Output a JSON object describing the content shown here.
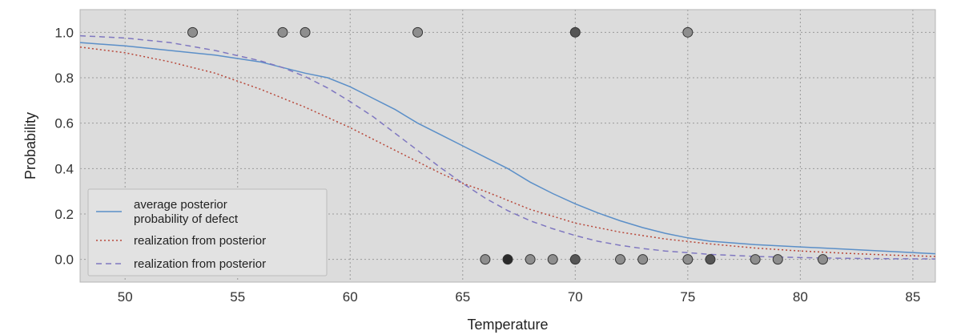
{
  "chart_data": {
    "type": "line",
    "title": "",
    "xlabel": "Temperature",
    "ylabel": "Probability",
    "xlim": [
      48,
      86
    ],
    "ylim": [
      -0.1,
      1.1
    ],
    "xticks": [
      50,
      55,
      60,
      65,
      70,
      75,
      80,
      85
    ],
    "yticks": [
      0.0,
      0.2,
      0.4,
      0.6,
      0.8,
      1.0
    ],
    "xtick_labels": [
      "50",
      "55",
      "60",
      "65",
      "70",
      "75",
      "80",
      "85"
    ],
    "ytick_labels": [
      "0.0",
      "0.2",
      "0.4",
      "0.6",
      "0.8",
      "1.0"
    ],
    "grid": true,
    "legend_position": "lower-left",
    "background_color": "#dcdcdc",
    "series": [
      {
        "name": "average posterior probability of defect",
        "legend_lines": [
          "average posterior",
          "probability of defect"
        ],
        "style": "solid",
        "color": "#5b8fc8",
        "x": [
          48,
          50,
          52,
          54,
          56,
          58,
          59,
          60,
          61,
          62,
          63,
          64,
          65,
          66,
          67,
          68,
          69,
          70,
          71,
          72,
          73,
          74,
          75,
          76,
          78,
          80,
          82,
          84,
          86
        ],
        "y": [
          0.955,
          0.94,
          0.92,
          0.9,
          0.87,
          0.82,
          0.8,
          0.76,
          0.71,
          0.66,
          0.6,
          0.55,
          0.5,
          0.45,
          0.4,
          0.34,
          0.29,
          0.245,
          0.205,
          0.17,
          0.14,
          0.115,
          0.095,
          0.08,
          0.065,
          0.055,
          0.045,
          0.035,
          0.025
        ]
      },
      {
        "name": "realization from posterior",
        "legend_lines": [
          "realization from posterior"
        ],
        "style": "dotted",
        "color": "#b8483a",
        "x": [
          48,
          50,
          52,
          54,
          56,
          58,
          60,
          62,
          64,
          65,
          66,
          68,
          70,
          72,
          74,
          76,
          78,
          80,
          82,
          84,
          86
        ],
        "y": [
          0.935,
          0.91,
          0.87,
          0.82,
          0.75,
          0.67,
          0.58,
          0.48,
          0.38,
          0.335,
          0.3,
          0.22,
          0.16,
          0.12,
          0.09,
          0.068,
          0.05,
          0.037,
          0.027,
          0.019,
          0.013
        ]
      },
      {
        "name": "realization from posterior",
        "legend_lines": [
          "realization from posterior"
        ],
        "style": "dashed",
        "color": "#7f77c0",
        "x": [
          48,
          50,
          52,
          54,
          56,
          57,
          58,
          59,
          60,
          61,
          62,
          63,
          64,
          65,
          66,
          67,
          68,
          69,
          70,
          71,
          72,
          73,
          74,
          76,
          78,
          80,
          82,
          84,
          86
        ],
        "y": [
          0.985,
          0.975,
          0.955,
          0.92,
          0.875,
          0.845,
          0.805,
          0.755,
          0.695,
          0.63,
          0.555,
          0.48,
          0.405,
          0.335,
          0.27,
          0.215,
          0.17,
          0.135,
          0.105,
          0.08,
          0.062,
          0.048,
          0.037,
          0.022,
          0.013,
          0.008,
          0.005,
          0.003,
          0.002
        ]
      }
    ],
    "observations": [
      {
        "x": 53,
        "y": 1,
        "count": 1
      },
      {
        "x": 57,
        "y": 1,
        "count": 1
      },
      {
        "x": 58,
        "y": 1,
        "count": 1
      },
      {
        "x": 63,
        "y": 1,
        "count": 1
      },
      {
        "x": 70,
        "y": 1,
        "count": 2
      },
      {
        "x": 75,
        "y": 1,
        "count": 1
      },
      {
        "x": 66,
        "y": 0,
        "count": 1
      },
      {
        "x": 67,
        "y": 0,
        "count": 3
      },
      {
        "x": 68,
        "y": 0,
        "count": 1
      },
      {
        "x": 69,
        "y": 0,
        "count": 1
      },
      {
        "x": 70,
        "y": 0,
        "count": 2
      },
      {
        "x": 72,
        "y": 0,
        "count": 1
      },
      {
        "x": 73,
        "y": 0,
        "count": 1
      },
      {
        "x": 75,
        "y": 0,
        "count": 1
      },
      {
        "x": 76,
        "y": 0,
        "count": 2
      },
      {
        "x": 78,
        "y": 0,
        "count": 1
      },
      {
        "x": 79,
        "y": 0,
        "count": 1
      },
      {
        "x": 81,
        "y": 0,
        "count": 1
      }
    ]
  }
}
